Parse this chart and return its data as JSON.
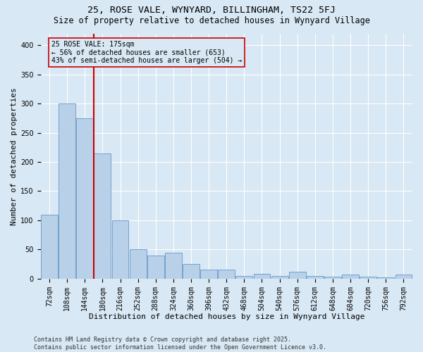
{
  "title1": "25, ROSE VALE, WYNYARD, BILLINGHAM, TS22 5FJ",
  "title2": "Size of property relative to detached houses in Wynyard Village",
  "xlabel": "Distribution of detached houses by size in Wynyard Village",
  "ylabel": "Number of detached properties",
  "categories": [
    "72sqm",
    "108sqm",
    "144sqm",
    "180sqm",
    "216sqm",
    "252sqm",
    "288sqm",
    "324sqm",
    "360sqm",
    "396sqm",
    "432sqm",
    "468sqm",
    "504sqm",
    "540sqm",
    "576sqm",
    "612sqm",
    "648sqm",
    "684sqm",
    "720sqm",
    "756sqm",
    "792sqm"
  ],
  "values": [
    110,
    300,
    275,
    215,
    100,
    50,
    40,
    45,
    25,
    15,
    15,
    5,
    8,
    5,
    12,
    5,
    3,
    7,
    3,
    2,
    7
  ],
  "bar_color": "#b8d0e8",
  "bar_edge_color": "#6699cc",
  "bg_color": "#d8e8f4",
  "grid_color": "#ffffff",
  "vline_x": 2.5,
  "vline_color": "#cc0000",
  "annotation_text": "25 ROSE VALE: 175sqm\n← 56% of detached houses are smaller (653)\n43% of semi-detached houses are larger (504) →",
  "annotation_box_color": "#cc0000",
  "footer": "Contains HM Land Registry data © Crown copyright and database right 2025.\nContains public sector information licensed under the Open Government Licence v3.0.",
  "ylim": [
    0,
    420
  ],
  "yticks": [
    0,
    50,
    100,
    150,
    200,
    250,
    300,
    350,
    400
  ],
  "title1_fontsize": 9.5,
  "title2_fontsize": 8.5,
  "xlabel_fontsize": 8,
  "ylabel_fontsize": 8,
  "tick_fontsize": 7,
  "annot_fontsize": 7,
  "footer_fontsize": 6
}
